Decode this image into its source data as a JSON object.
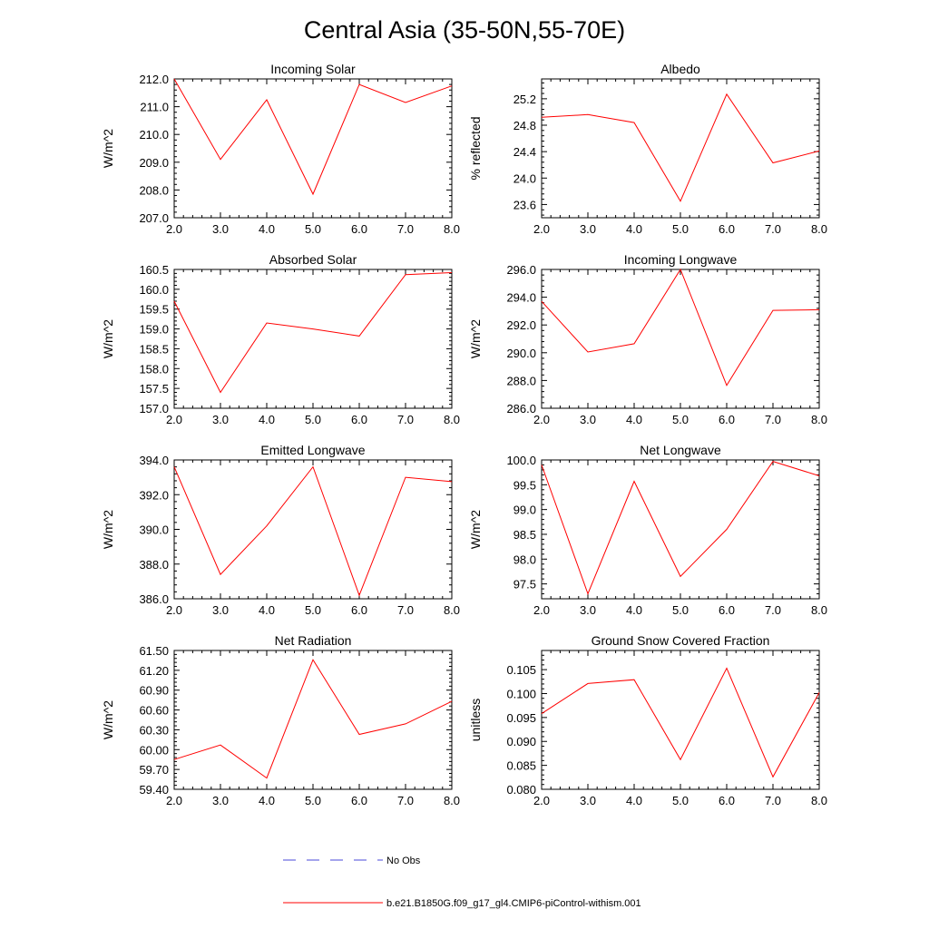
{
  "title": "Central Asia (35-50N,55-70E)",
  "colors": {
    "model": "#ff0000",
    "obs": "#4a4ad8",
    "axis": "#000000"
  },
  "legend": {
    "obs_label": "No Obs",
    "model_label": "b.e21.B1850G.f09_g17_gl4.CMIP6-piControl-withism.001"
  },
  "chart_data": [
    {
      "type": "line",
      "title": "Incoming Solar",
      "ylabel": "W/m^2",
      "x": [
        2,
        3,
        4,
        5,
        6,
        7,
        8
      ],
      "xticks": [
        "2.0",
        "3.0",
        "4.0",
        "5.0",
        "6.0",
        "7.0",
        "8.0"
      ],
      "ylim": [
        207.0,
        212.0
      ],
      "yticks": [
        "207.0",
        "208.0",
        "209.0",
        "210.0",
        "211.0",
        "212.0"
      ],
      "series": [
        {
          "values": [
            212.0,
            209.1,
            211.25,
            207.85,
            211.8,
            211.15,
            211.75
          ]
        }
      ]
    },
    {
      "type": "line",
      "title": "Albedo",
      "ylabel": "% reflected",
      "x": [
        2,
        3,
        4,
        5,
        6,
        7,
        8
      ],
      "xticks": [
        "2.0",
        "3.0",
        "4.0",
        "5.0",
        "6.0",
        "7.0",
        "8.0"
      ],
      "ylim": [
        23.4,
        25.5
      ],
      "yticks": [
        "23.6",
        "24.0",
        "24.4",
        "24.8",
        "25.2"
      ],
      "series": [
        {
          "values": [
            24.92,
            24.96,
            24.84,
            23.65,
            25.27,
            24.23,
            24.41
          ]
        }
      ]
    },
    {
      "type": "line",
      "title": "Absorbed Solar",
      "ylabel": "W/m^2",
      "x": [
        2,
        3,
        4,
        5,
        6,
        7,
        8
      ],
      "xticks": [
        "2.0",
        "3.0",
        "4.0",
        "5.0",
        "6.0",
        "7.0",
        "8.0"
      ],
      "ylim": [
        157.0,
        160.5
      ],
      "yticks": [
        "157.0",
        "157.5",
        "158.0",
        "158.5",
        "159.0",
        "159.5",
        "160.0",
        "160.5"
      ],
      "series": [
        {
          "values": [
            159.7,
            157.4,
            159.15,
            159.0,
            158.82,
            160.37,
            160.42
          ]
        }
      ]
    },
    {
      "type": "line",
      "title": "Incoming Longwave",
      "ylabel": "W/m^2",
      "x": [
        2,
        3,
        4,
        5,
        6,
        7,
        8
      ],
      "xticks": [
        "2.0",
        "3.0",
        "4.0",
        "5.0",
        "6.0",
        "7.0",
        "8.0"
      ],
      "ylim": [
        286.0,
        296.0
      ],
      "yticks": [
        "286.0",
        "288.0",
        "290.0",
        "292.0",
        "294.0",
        "296.0"
      ],
      "series": [
        {
          "values": [
            293.7,
            290.05,
            290.65,
            296.0,
            287.65,
            293.05,
            293.1
          ]
        }
      ]
    },
    {
      "type": "line",
      "title": "Emitted Longwave",
      "ylabel": "W/m^2",
      "x": [
        2,
        3,
        4,
        5,
        6,
        7,
        8
      ],
      "xticks": [
        "2.0",
        "3.0",
        "4.0",
        "5.0",
        "6.0",
        "7.0",
        "8.0"
      ],
      "ylim": [
        386.0,
        394.0
      ],
      "yticks": [
        "386.0",
        "388.0",
        "390.0",
        "392.0",
        "394.0"
      ],
      "series": [
        {
          "values": [
            393.6,
            387.4,
            390.2,
            393.6,
            386.2,
            393.0,
            392.75
          ]
        }
      ]
    },
    {
      "type": "line",
      "title": "Net Longwave",
      "ylabel": "W/m^2",
      "x": [
        2,
        3,
        4,
        5,
        6,
        7,
        8
      ],
      "xticks": [
        "2.0",
        "3.0",
        "4.0",
        "5.0",
        "6.0",
        "7.0",
        "8.0"
      ],
      "ylim": [
        97.2,
        100.0
      ],
      "yticks": [
        "97.5",
        "98.0",
        "98.5",
        "99.0",
        "99.5",
        "100.0"
      ],
      "series": [
        {
          "values": [
            99.9,
            97.3,
            99.57,
            97.65,
            98.6,
            99.97,
            99.68
          ]
        }
      ]
    },
    {
      "type": "line",
      "title": "Net Radiation",
      "ylabel": "W/m^2",
      "x": [
        2,
        3,
        4,
        5,
        6,
        7,
        8
      ],
      "xticks": [
        "2.0",
        "3.0",
        "4.0",
        "5.0",
        "6.0",
        "7.0",
        "8.0"
      ],
      "ylim": [
        59.4,
        61.5
      ],
      "yticks": [
        "59.40",
        "59.70",
        "60.00",
        "60.30",
        "60.60",
        "60.90",
        "61.20",
        "61.50"
      ],
      "series": [
        {
          "values": [
            59.85,
            60.07,
            59.57,
            61.36,
            60.23,
            60.39,
            60.73
          ]
        }
      ]
    },
    {
      "type": "line",
      "title": "Ground Snow Covered Fraction",
      "ylabel": "unitless",
      "x": [
        2,
        3,
        4,
        5,
        6,
        7,
        8
      ],
      "xticks": [
        "2.0",
        "3.0",
        "4.0",
        "5.0",
        "6.0",
        "7.0",
        "8.0"
      ],
      "ylim": [
        0.08,
        0.109
      ],
      "yticks": [
        "0.080",
        "0.085",
        "0.090",
        "0.095",
        "0.100",
        "0.105"
      ],
      "series": [
        {
          "values": [
            0.0958,
            0.1021,
            0.1029,
            0.0862,
            0.1053,
            0.0826,
            0.1002
          ]
        }
      ]
    }
  ]
}
